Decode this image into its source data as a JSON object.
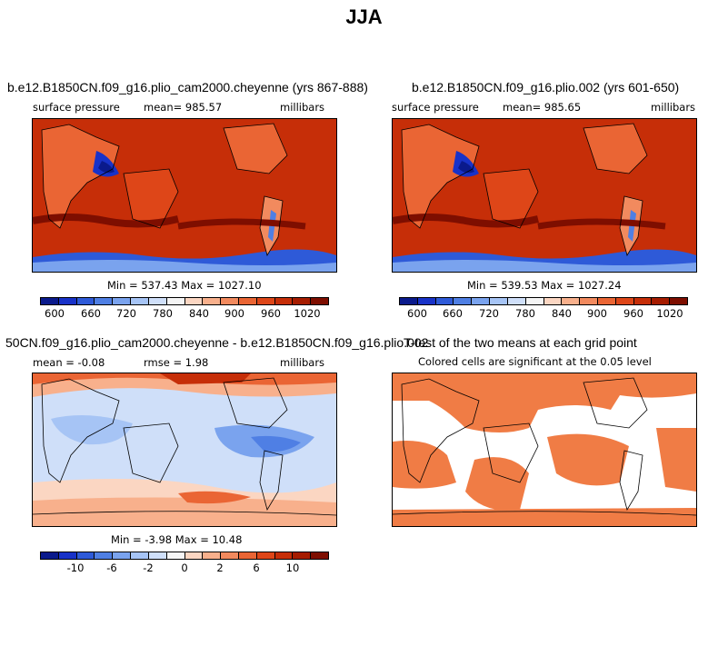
{
  "title": "JJA",
  "chart_data": [
    {
      "type": "heatmap",
      "title": "b.e12.B1850CN.f09_g16.plio_cam2000.cheyenne (yrs 867-888)",
      "variable": "surface pressure",
      "mean_label": "mean=  985.57",
      "units": "millibars",
      "minmax_label": "Min = 537.43 Max = 1027.10",
      "colorbar_ticks": [
        "600",
        "660",
        "720",
        "780",
        "840",
        "900",
        "960",
        "1020"
      ],
      "colorbar_colors": [
        "#0a1a8c",
        "#1832c8",
        "#2e5ad8",
        "#4f7fe4",
        "#7aa3ee",
        "#a6c4f5",
        "#cfdff9",
        "#f5f5f5",
        "#fbd6c2",
        "#f8b08c",
        "#f28a5e",
        "#ea6534",
        "#de4618",
        "#c62e08",
        "#a61c00",
        "#7e0e00"
      ]
    },
    {
      "type": "heatmap",
      "title": "b.e12.B1850CN.f09_g16.plio.002 (yrs 601-650)",
      "variable": "surface pressure",
      "mean_label": "mean=  985.65",
      "units": "millibars",
      "minmax_label": "Min = 539.53 Max = 1027.24",
      "colorbar_ticks": [
        "600",
        "660",
        "720",
        "780",
        "840",
        "900",
        "960",
        "1020"
      ],
      "colorbar_colors": [
        "#0a1a8c",
        "#1832c8",
        "#2e5ad8",
        "#4f7fe4",
        "#7aa3ee",
        "#a6c4f5",
        "#cfdff9",
        "#f5f5f5",
        "#fbd6c2",
        "#f8b08c",
        "#f28a5e",
        "#ea6534",
        "#de4618",
        "#c62e08",
        "#a61c00",
        "#7e0e00"
      ]
    },
    {
      "type": "heatmap",
      "title": "50CN.f09_g16.plio_cam2000.cheyenne - b.e12.B1850CN.f09_g16.plio.002",
      "mean_label": "mean =  -0.08",
      "rmse_label": "rmse =   1.98",
      "units": "millibars",
      "minmax_label": "Min =  -3.98 Max =  10.48",
      "colorbar_ticks": [
        "-10",
        "-6",
        "-2",
        "0",
        "2",
        "6",
        "10"
      ],
      "colorbar_colors": [
        "#0a1a8c",
        "#1832c8",
        "#2e5ad8",
        "#4f7fe4",
        "#7aa3ee",
        "#a6c4f5",
        "#cfdff9",
        "#f5f5f5",
        "#fbd6c2",
        "#f8b08c",
        "#f28a5e",
        "#ea6534",
        "#de4618",
        "#c62e08",
        "#a61c00",
        "#7e0e00"
      ]
    },
    {
      "type": "heatmap",
      "title": "T-test of the two means at each grid point",
      "subtitle": "Colored cells are significant at the 0.05 level",
      "significant_color": "#f07c45"
    }
  ]
}
